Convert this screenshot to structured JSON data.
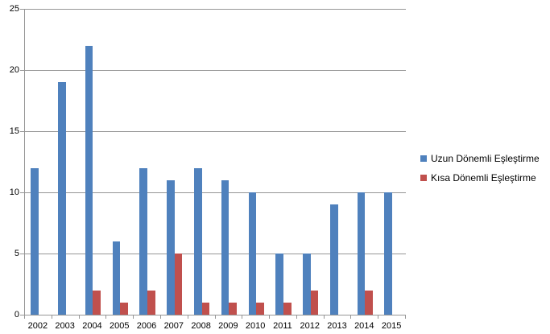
{
  "page": {
    "background_color": "#ffffff",
    "text_color": "#000000"
  },
  "chart_data": {
    "type": "bar",
    "title": "",
    "xlabel": "",
    "ylabel": "",
    "categories": [
      "2002",
      "2003",
      "2004",
      "2005",
      "2006",
      "2007",
      "2008",
      "2009",
      "2010",
      "2011",
      "2012",
      "2013",
      "2014",
      "2015"
    ],
    "series": [
      {
        "name": "Uzun Dönemli Eşleştirme",
        "color": "#4F81BD",
        "values": [
          12,
          19,
          22,
          6,
          12,
          11,
          12,
          11,
          10,
          5,
          5,
          9,
          10,
          10
        ]
      },
      {
        "name": "Kısa Dönemli Eşleştirme",
        "color": "#C0504D",
        "values": [
          0,
          0,
          2,
          1,
          2,
          5,
          1,
          1,
          1,
          1,
          2,
          0,
          2,
          0
        ]
      }
    ],
    "ylim": [
      0,
      25
    ],
    "yticks": [
      0,
      5,
      10,
      15,
      20,
      25
    ],
    "grid": "horizontal",
    "gridline_color": "#969696",
    "axis_color": "#969696",
    "legend_position": "right"
  }
}
